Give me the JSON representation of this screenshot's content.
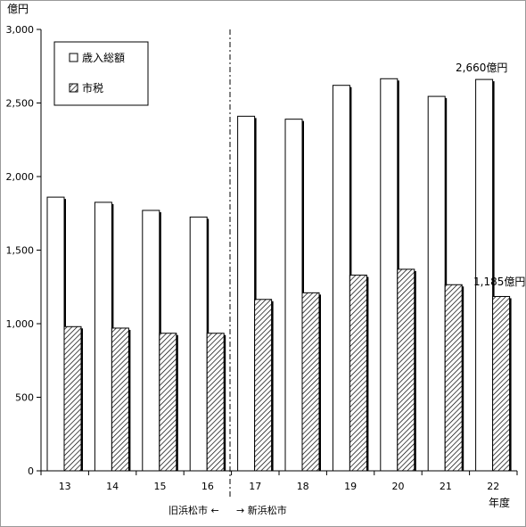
{
  "chart_data": {
    "type": "bar",
    "ylabel": "億円",
    "xlabel": "年度",
    "ylim": [
      0,
      3000
    ],
    "yticks": [
      "0",
      "500",
      "1,000",
      "1,500",
      "2,000",
      "2,500",
      "3,000"
    ],
    "ytick_values": [
      0,
      500,
      1000,
      1500,
      2000,
      2500,
      3000
    ],
    "categories": [
      "13",
      "14",
      "15",
      "16",
      "17",
      "18",
      "19",
      "20",
      "21",
      "22"
    ],
    "series": [
      {
        "name": "歳入総額",
        "values": [
          1860,
          1825,
          1770,
          1725,
          2410,
          2390,
          2620,
          2665,
          2545,
          2660
        ]
      },
      {
        "name": "市税",
        "values": [
          980,
          970,
          935,
          935,
          1165,
          1210,
          1330,
          1370,
          1265,
          1185
        ]
      }
    ],
    "legend": {
      "position": "top-left",
      "entries": [
        "歳入総額",
        "市税"
      ]
    },
    "annotations": {
      "total_last": "2,660億円",
      "tax_last": "1,185億円",
      "old_city": "旧浜松市 ←",
      "new_city": "→ 新浜松市"
    },
    "grid": false
  }
}
